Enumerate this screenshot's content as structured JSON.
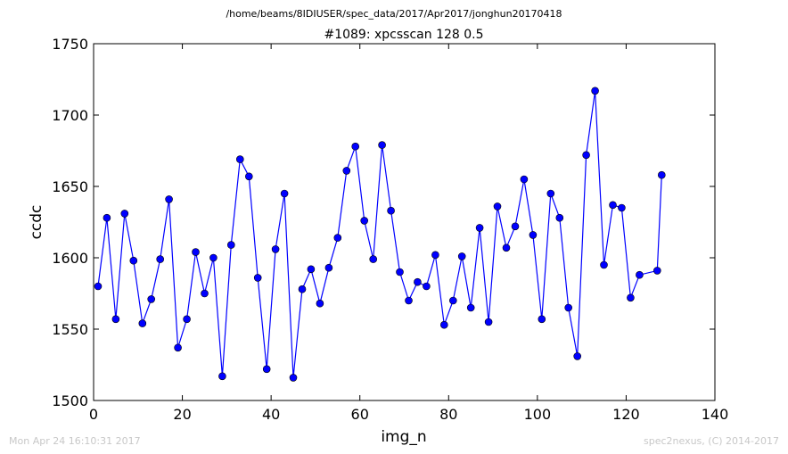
{
  "header": {
    "path": "/home/beams/8IDIUSER/spec_data/2017/Apr2017/jonghun20170418",
    "scan_title": "#1089: xpcsscan 128 0.5"
  },
  "footer": {
    "timestamp": "Mon Apr 24 16:10:31 2017",
    "credit": "spec2nexus, (C) 2014-2017"
  },
  "colors": {
    "series": "#0000ff",
    "marker": "#0000ff",
    "axes": "#000000"
  },
  "chart_data": {
    "type": "line",
    "xlabel": "img_n",
    "ylabel": "ccdc",
    "xlim": [
      0,
      140
    ],
    "ylim": [
      1500,
      1750
    ],
    "xticks": [
      0,
      20,
      40,
      60,
      80,
      100,
      120,
      140
    ],
    "yticks": [
      1500,
      1550,
      1600,
      1650,
      1700,
      1750
    ],
    "grid": false,
    "series": [
      {
        "x": [
          1,
          3,
          5,
          7,
          9,
          11,
          13,
          15,
          17,
          19,
          21,
          23,
          25,
          27,
          29,
          31,
          33,
          35,
          37,
          39,
          41,
          43,
          45,
          47,
          49,
          51,
          53,
          55,
          57,
          59,
          61,
          63,
          65,
          67,
          69,
          71,
          73,
          75,
          77,
          79,
          81,
          83,
          85,
          87,
          89,
          91,
          93,
          95,
          97,
          99,
          101,
          103,
          105,
          107,
          109,
          111,
          113,
          115,
          117,
          119,
          121,
          123,
          127,
          128
        ],
        "y": [
          1580,
          1628,
          1557,
          1631,
          1598,
          1554,
          1571,
          1599,
          1641,
          1537,
          1557,
          1604,
          1575,
          1600,
          1517,
          1609,
          1669,
          1657,
          1586,
          1522,
          1606,
          1645,
          1516,
          1578,
          1592,
          1568,
          1593,
          1614,
          1661,
          1678,
          1626,
          1599,
          1679,
          1633,
          1590,
          1570,
          1583,
          1580,
          1602,
          1553,
          1570,
          1601,
          1565,
          1621,
          1555,
          1636,
          1607,
          1622,
          1655,
          1616,
          1557,
          1645,
          1628,
          1565,
          1531,
          1672,
          1717,
          1595,
          1637,
          1635,
          1572,
          1588,
          1591,
          1658
        ]
      }
    ]
  }
}
